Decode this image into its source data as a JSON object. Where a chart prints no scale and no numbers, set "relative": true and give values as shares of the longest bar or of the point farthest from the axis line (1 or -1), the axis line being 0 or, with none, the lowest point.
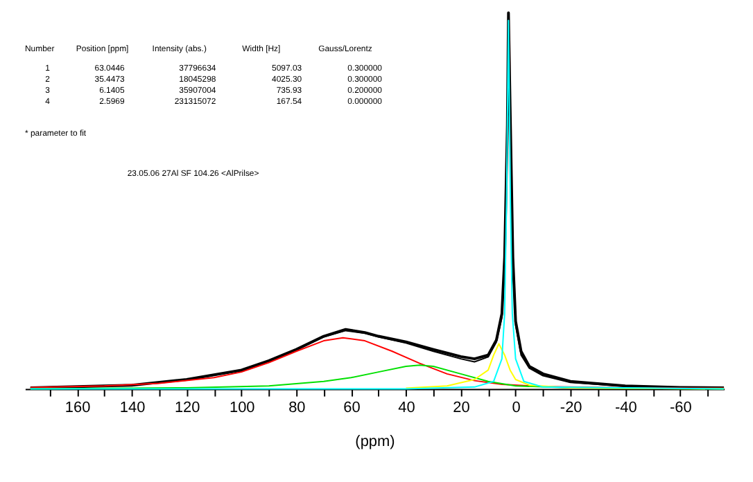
{
  "chart_data": {
    "type": "line",
    "relative": true,
    "xlabel": "(ppm)",
    "grid": false,
    "marker": "none",
    "line_style": "solid",
    "xlim": [
      179,
      -76
    ],
    "xticks": [
      {
        "value": 170,
        "label": null
      },
      160,
      {
        "value": 150,
        "label": null
      },
      140,
      {
        "value": 130,
        "label": null
      },
      120,
      {
        "value": 110,
        "label": null
      },
      100,
      {
        "value": 90,
        "label": null
      },
      80,
      {
        "value": 70,
        "label": null
      },
      60,
      {
        "value": 50,
        "label": null
      },
      40,
      {
        "value": 30,
        "label": null
      },
      20,
      {
        "value": 10,
        "label": null
      },
      0,
      {
        "value": -10,
        "label": null
      },
      -20,
      {
        "value": -30,
        "label": null
      },
      -40,
      {
        "value": -50,
        "label": null
      },
      -60,
      {
        "value": -70,
        "label": null
      }
    ],
    "annotations": [
      "Number",
      "Position [ppm]",
      "Intensity (abs.)",
      "Width [Hz]",
      "Gauss/Lorentz",
      "1",
      "63.0446",
      "37796634",
      "5097.03",
      "0.300000",
      "2",
      "35.4473",
      "18045298",
      "4025.30",
      "0.300000",
      "3",
      "6.1405",
      "35907004",
      "735.93",
      "0.200000",
      "4",
      "2.5969",
      "231315072",
      "167.54",
      "0.000000",
      "* parameter to fit",
      "23.05.06 27Al SF 104.26 <AlPrilse>"
    ],
    "series": [
      {
        "color": "#000000",
        "x": [
          177,
          160,
          140,
          120,
          100,
          90,
          80,
          70,
          62,
          55,
          50,
          40,
          30,
          20,
          15,
          10,
          7,
          5,
          4,
          3,
          2.6,
          2,
          1,
          0,
          -2,
          -5,
          -10,
          -20,
          -40,
          -60,
          -76
        ],
        "values": [
          0.003,
          0.006,
          0.01,
          0.025,
          0.05,
          0.075,
          0.105,
          0.14,
          0.158,
          0.15,
          0.14,
          0.125,
          0.105,
          0.086,
          0.08,
          0.09,
          0.13,
          0.2,
          0.35,
          0.7,
          1.0,
          0.75,
          0.35,
          0.18,
          0.1,
          0.06,
          0.04,
          0.02,
          0.008,
          0.004,
          0.003
        ]
      },
      {
        "color": "#000000",
        "x": [
          177,
          160,
          140,
          120,
          100,
          90,
          80,
          70,
          62,
          55,
          50,
          40,
          30,
          20,
          15,
          10,
          7,
          5,
          4,
          3,
          2.6,
          2,
          1,
          0,
          -2,
          -5,
          -10,
          -20,
          -40,
          -60,
          -76
        ],
        "values": [
          0.003,
          0.006,
          0.01,
          0.024,
          0.049,
          0.074,
          0.103,
          0.138,
          0.155,
          0.148,
          0.138,
          0.122,
          0.1,
          0.08,
          0.072,
          0.085,
          0.125,
          0.19,
          0.33,
          0.68,
          0.99,
          0.72,
          0.33,
          0.17,
          0.09,
          0.055,
          0.035,
          0.017,
          0.007,
          0.003,
          0.002
        ]
      },
      {
        "color": "#ff0000",
        "x": [
          177,
          150,
          130,
          110,
          100,
          90,
          80,
          70,
          63,
          55,
          45,
          35,
          25,
          15,
          5,
          -10,
          -40,
          -76
        ],
        "values": [
          0.004,
          0.008,
          0.015,
          0.03,
          0.045,
          0.07,
          0.1,
          0.128,
          0.136,
          0.128,
          0.1,
          0.068,
          0.04,
          0.022,
          0.012,
          0.006,
          0.003,
          0.002
        ]
      },
      {
        "color": "#00e000",
        "x": [
          177,
          120,
          90,
          70,
          60,
          50,
          40,
          35,
          30,
          20,
          10,
          0,
          -20,
          -76
        ],
        "values": [
          0.0,
          0.003,
          0.008,
          0.02,
          0.03,
          0.045,
          0.06,
          0.063,
          0.06,
          0.04,
          0.02,
          0.008,
          0.003,
          0.0
        ]
      },
      {
        "color": "#ffff00",
        "x": [
          40,
          25,
          15,
          10,
          8,
          6.1,
          4,
          2,
          0,
          -5,
          -20,
          -76
        ],
        "values": [
          0.002,
          0.008,
          0.025,
          0.05,
          0.09,
          0.12,
          0.09,
          0.05,
          0.025,
          0.01,
          0.003,
          0.0
        ]
      },
      {
        "color": "#00ffff",
        "x": [
          177,
          40,
          15,
          8,
          5,
          4,
          3.3,
          2.6,
          1.9,
          1.2,
          0,
          -3,
          -10,
          -76
        ],
        "values": [
          0.0,
          0.0,
          0.005,
          0.02,
          0.08,
          0.2,
          0.5,
          0.98,
          0.5,
          0.2,
          0.08,
          0.02,
          0.005,
          0.0
        ]
      }
    ]
  }
}
